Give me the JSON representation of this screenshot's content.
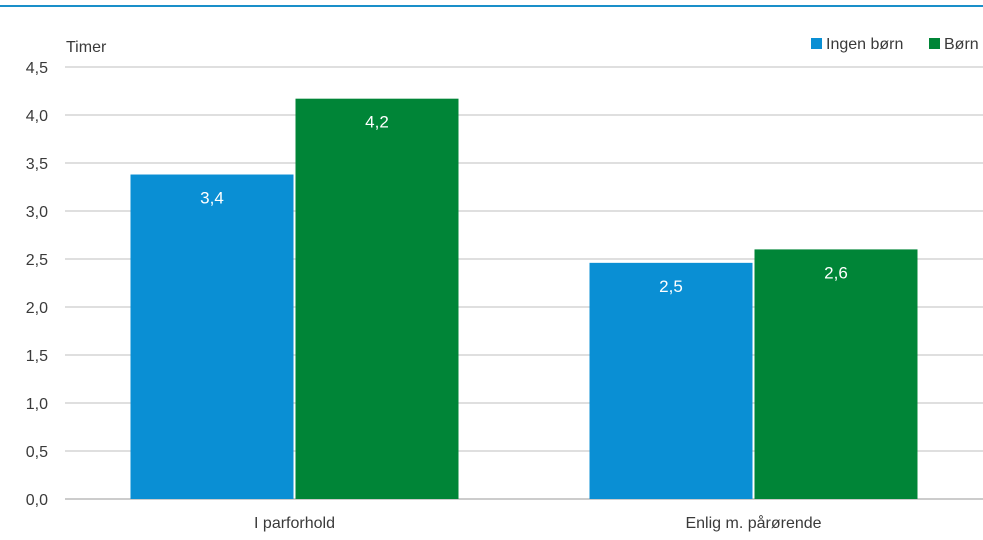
{
  "chart_data": {
    "type": "bar",
    "y_unit_label": "Timer",
    "categories": [
      "I parforhold",
      "Enlig m. pårørende"
    ],
    "series": [
      {
        "name": "Ingen børn",
        "color": "#0a8fd4",
        "values": [
          3.38,
          2.46
        ],
        "labels": [
          "3,4",
          "2,5"
        ]
      },
      {
        "name": "Børn",
        "color": "#008537",
        "values": [
          4.17,
          2.6
        ],
        "labels": [
          "4,2",
          "2,6"
        ]
      }
    ],
    "ylim": [
      0,
      4.5
    ],
    "yticks": [
      0,
      0.5,
      1.0,
      1.5,
      2.0,
      2.5,
      3.0,
      3.5,
      4.0,
      4.5
    ],
    "ytick_labels": [
      "0,0",
      "0,5",
      "1,0",
      "1,5",
      "2,0",
      "2,5",
      "3,0",
      "3,5",
      "4,0",
      "4,5"
    ],
    "grid": true,
    "legend_position": "top-right",
    "colors": {
      "top_rule": "#1a8fc9",
      "grid": "#bfbfbf",
      "axis": "#9a9a9a"
    }
  }
}
